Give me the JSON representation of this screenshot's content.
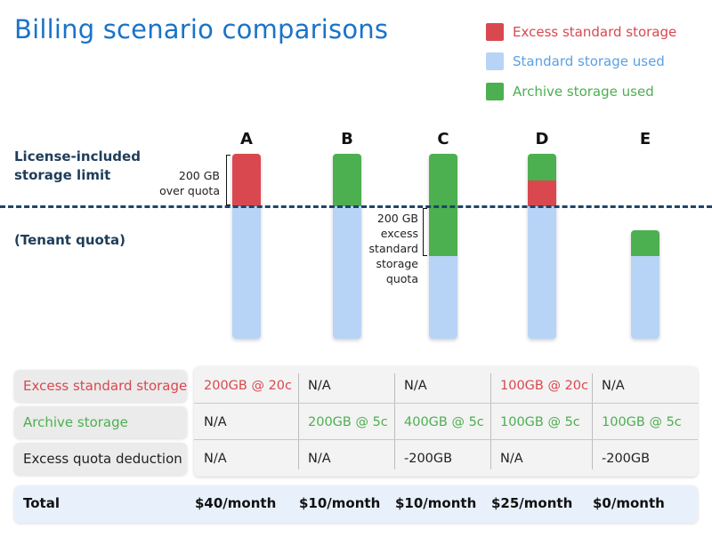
{
  "title": "Billing scenario comparisons",
  "colors": {
    "excess_standard": "#d9484f",
    "standard_used": "#b7d4f7",
    "archive_used": "#4caf50",
    "title_blue": "#1a73c8",
    "label_navy": "#1f3d5a"
  },
  "legend": [
    {
      "label": "Excess standard storage",
      "color": "#d9484f",
      "text_color": "#d9484f"
    },
    {
      "label": "Standard storage used",
      "color": "#b7d4f7",
      "text_color": "#5aa0e6"
    },
    {
      "label": "Archive storage used",
      "color": "#4caf50",
      "text_color": "#4caf50"
    }
  ],
  "side_labels": {
    "limit_line1": "License-included",
    "limit_line2": "storage limit",
    "quota": "(Tenant quota)"
  },
  "columns": [
    "A",
    "B",
    "C",
    "D",
    "E"
  ],
  "annotations": {
    "a_line1": "200 GB",
    "a_line2": "over quota",
    "c_line1": "200 GB",
    "c_line2": "excess",
    "c_line3": "standard",
    "c_line4": "storage",
    "c_line5": "quota"
  },
  "table": {
    "rows": [
      {
        "label": "Excess standard storage",
        "label_color": "#d9484f",
        "cells": [
          {
            "text": "200GB @ 20c",
            "color": "#d9484f"
          },
          {
            "text": "N/A",
            "color": "#222222"
          },
          {
            "text": "N/A",
            "color": "#222222"
          },
          {
            "text": "100GB @ 20c",
            "color": "#d9484f"
          },
          {
            "text": "N/A",
            "color": "#222222"
          }
        ]
      },
      {
        "label": "Archive storage",
        "label_color": "#4caf50",
        "cells": [
          {
            "text": "N/A",
            "color": "#222222"
          },
          {
            "text": "200GB @ 5c",
            "color": "#4caf50"
          },
          {
            "text": "400GB @ 5c",
            "color": "#4caf50"
          },
          {
            "text": "100GB @ 5c",
            "color": "#4caf50"
          },
          {
            "text": "100GB @ 5c",
            "color": "#4caf50"
          }
        ]
      },
      {
        "label": "Excess quota deduction",
        "label_color": "#222222",
        "cells": [
          {
            "text": "N/A",
            "color": "#222222"
          },
          {
            "text": "N/A",
            "color": "#222222"
          },
          {
            "text": "-200GB",
            "color": "#222222"
          },
          {
            "text": "N/A",
            "color": "#222222"
          },
          {
            "text": "-200GB",
            "color": "#222222"
          }
        ]
      }
    ],
    "total_label": "Total",
    "totals": [
      "$40/month",
      "$10/month",
      "$10/month",
      "$25/month",
      "$0/month"
    ]
  }
}
